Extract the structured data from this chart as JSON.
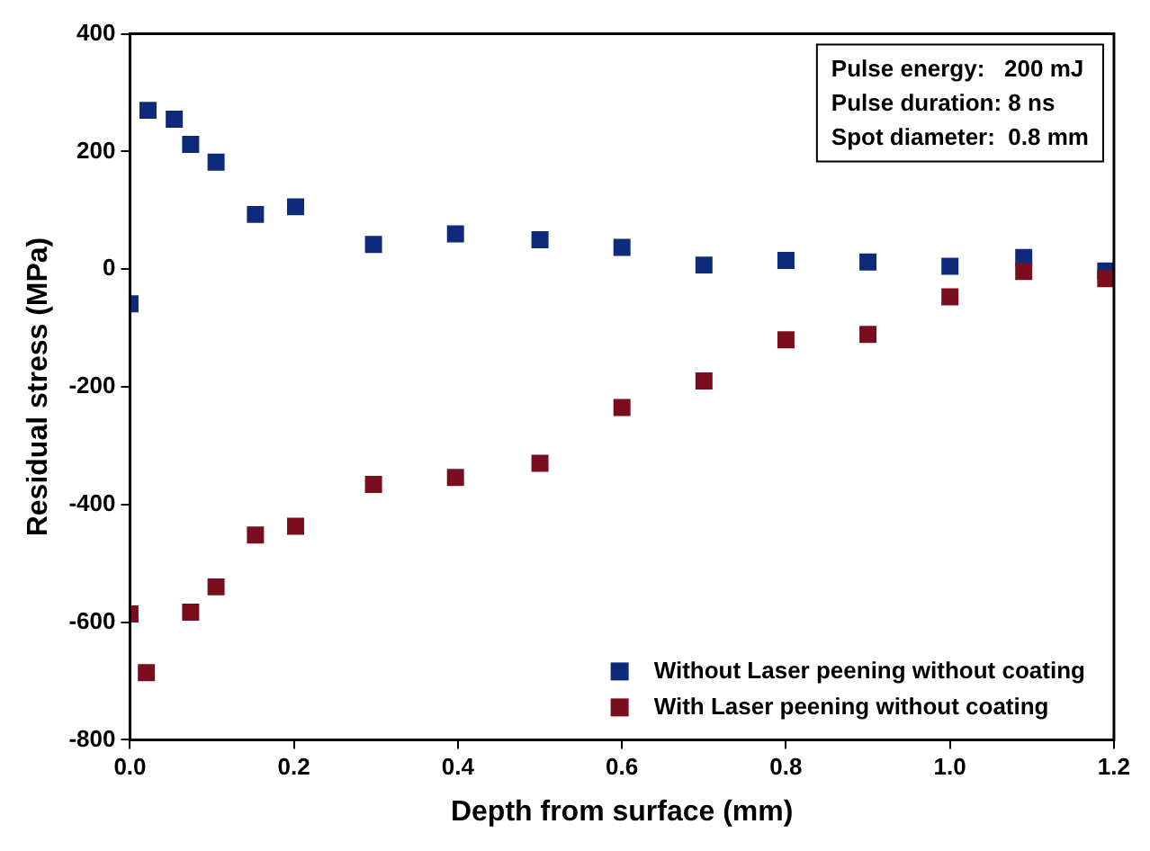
{
  "chart_data": {
    "type": "scatter",
    "xlabel": "Depth from surface (mm)",
    "ylabel": "Residual stress (MPa)",
    "xlim": [
      0,
      1.2
    ],
    "xticks": [
      {
        "value": 0,
        "label": "0.0"
      },
      {
        "value": 0.2,
        "label": "0.2"
      },
      {
        "value": 0.4,
        "label": "0.4"
      },
      {
        "value": 0.6,
        "label": "0.6"
      },
      {
        "value": 0.8,
        "label": "0.8"
      },
      {
        "value": 1,
        "label": "1.0"
      },
      {
        "value": 1.2,
        "label": "1.2"
      }
    ],
    "ylim": [
      -800,
      400
    ],
    "yticks": [
      -800,
      -600,
      -400,
      -200,
      0,
      200,
      400
    ],
    "marker": "square",
    "grid": false,
    "legend": "bottom right",
    "annotations": [
      "Pulse energy:   200 mJ",
      "Pulse duration: 8 ns",
      "Spot diameter:  0.8 mm"
    ],
    "series": [
      {
        "name": "Without Laser peening without coating",
        "color": "#0e2a7a",
        "x": [
          0,
          0.022,
          0.054,
          0.074,
          0.105,
          0.153,
          0.202,
          0.297,
          0.397,
          0.5,
          0.6,
          0.7,
          0.8,
          0.9,
          1.0,
          1.09,
          1.19
        ],
        "values": [
          -59,
          270,
          255,
          212,
          182,
          93,
          106,
          42,
          60,
          50,
          37,
          7,
          15,
          12,
          5,
          20,
          -3
        ]
      },
      {
        "name": "With Laser peening without coating",
        "color": "#7a0e1e",
        "x": [
          0,
          0.02,
          0.074,
          0.105,
          0.153,
          0.202,
          0.297,
          0.397,
          0.5,
          0.6,
          0.7,
          0.8,
          0.9,
          1.0,
          1.09,
          1.19
        ],
        "values": [
          -586,
          -686,
          -583,
          -540,
          -452,
          -437,
          -366,
          -354,
          -330,
          -235,
          -190,
          -120,
          -111,
          -47,
          -4,
          -16
        ]
      }
    ]
  }
}
